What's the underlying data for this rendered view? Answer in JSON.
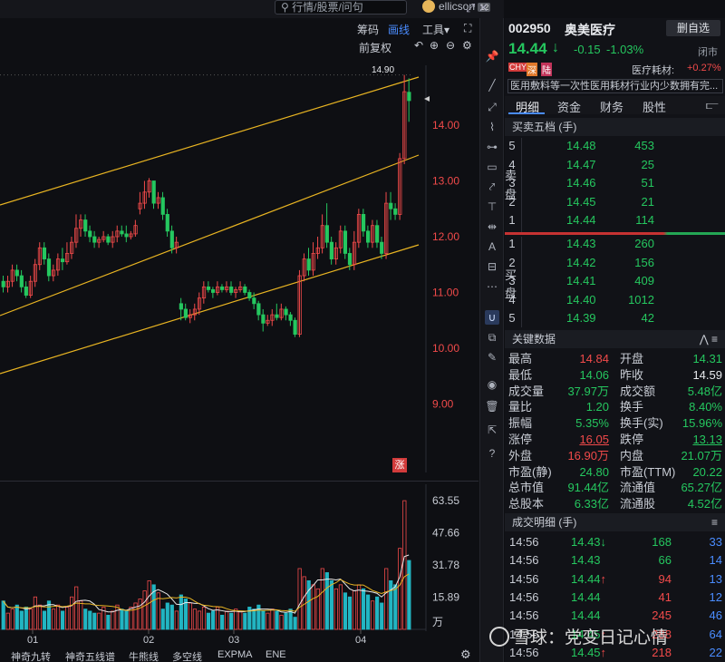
{
  "topbar": {
    "search_placeholder": "行情/股票/问句",
    "username": "ellicson",
    "user_badge": "12",
    "window_icons": [
      "expand-icon",
      "close-icon"
    ]
  },
  "chart_toolbar": {
    "row1": [
      "筹码",
      "画线",
      "工具▾"
    ],
    "active": "画线",
    "fq_label": "前复权",
    "icons": [
      "fullscreen-icon",
      "undo-icon",
      "zoom-in-icon",
      "zoom-out-icon",
      "settings-icon"
    ]
  },
  "main_chart": {
    "price_labels": [
      "14.00",
      "13.00",
      "12.00",
      "11.00",
      "10.00",
      "9.00"
    ],
    "high_marker": "14.90",
    "zhang_badge": "涨"
  },
  "vol_chart": {
    "labels": [
      "63.55",
      "47.66",
      "31.78",
      "15.89",
      "万"
    ],
    "months": [
      "01",
      "02",
      "03",
      "04"
    ]
  },
  "indicator_tabs": [
    "神奇九转",
    "神奇五线谱",
    "牛熊线",
    "多空线",
    "EXPMA",
    "ENE"
  ],
  "stock": {
    "code": "002950",
    "name": "奥美医疗",
    "watch_btn": "删自选",
    "price": "14.44",
    "arrow": "↓",
    "change": "-0.15",
    "pct": "-1.03%",
    "status": "闭市",
    "tags": [
      "CHY",
      "深",
      "陆"
    ],
    "industry": "医疗耗材:",
    "industry_pct": "+0.27%",
    "desc": "医用敷料等一次性医用耗材行业内少数拥有完..."
  },
  "tabs": [
    "明细",
    "资金",
    "财务",
    "股性"
  ],
  "orderbook": {
    "title": "买卖五档 (手)",
    "sell_label": [
      "卖",
      "盘"
    ],
    "buy_label": [
      "买",
      "盘"
    ],
    "sell": [
      {
        "lv": "5",
        "price": "14.48",
        "vol": "453"
      },
      {
        "lv": "4",
        "price": "14.47",
        "vol": "25"
      },
      {
        "lv": "3",
        "price": "14.46",
        "vol": "51"
      },
      {
        "lv": "2",
        "price": "14.45",
        "vol": "21"
      },
      {
        "lv": "1",
        "price": "14.44",
        "vol": "114"
      }
    ],
    "buy": [
      {
        "lv": "1",
        "price": "14.43",
        "vol": "260"
      },
      {
        "lv": "2",
        "price": "14.42",
        "vol": "156"
      },
      {
        "lv": "3",
        "price": "14.41",
        "vol": "409"
      },
      {
        "lv": "4",
        "price": "14.40",
        "vol": "1012"
      },
      {
        "lv": "5",
        "price": "14.39",
        "vol": "42"
      }
    ]
  },
  "key_data": {
    "title": "关键数据",
    "rows": [
      {
        "l1": "最高",
        "v1": "14.84",
        "c1": "red",
        "l2": "开盘",
        "v2": "14.31",
        "c2": "green"
      },
      {
        "l1": "最低",
        "v1": "14.06",
        "c1": "green",
        "l2": "昨收",
        "v2": "14.59",
        "c2": "white"
      },
      {
        "l1": "成交量",
        "v1": "37.97万",
        "c1": "green",
        "l2": "成交额",
        "v2": "5.48亿",
        "c2": "green"
      },
      {
        "l1": "量比",
        "v1": "1.20",
        "c1": "green",
        "l2": "换手",
        "v2": "8.40%",
        "c2": "green"
      },
      {
        "l1": "振幅",
        "v1": "5.35%",
        "c1": "green",
        "l2": "换手(实)",
        "v2": "15.96%",
        "c2": "green"
      },
      {
        "l1": "涨停",
        "v1": "16.05",
        "c1": "red-u",
        "l2": "跌停",
        "v2": "13.13",
        "c2": "green-u"
      },
      {
        "l1": "外盘",
        "v1": "16.90万",
        "c1": "red",
        "l2": "内盘",
        "v2": "21.07万",
        "c2": "green"
      },
      {
        "l1": "市盈(静)",
        "v1": "24.80",
        "c1": "green",
        "l2": "市盈(TTM)",
        "v2": "20.22",
        "c2": "green"
      },
      {
        "l1": "总市值",
        "v1": "91.44亿",
        "c1": "green",
        "l2": "流通值",
        "v2": "65.27亿",
        "c2": "green"
      },
      {
        "l1": "总股本",
        "v1": "6.33亿",
        "c1": "green",
        "l2": "流通股",
        "v2": "4.52亿",
        "c2": "green"
      }
    ]
  },
  "trades": {
    "title": "成交明细 (手)",
    "rows": [
      {
        "t": "14:56",
        "p": "14.43",
        "arrow": "↓",
        "ac": "green",
        "v": "168",
        "vc": "green",
        "n": "33"
      },
      {
        "t": "14:56",
        "p": "14.43",
        "arrow": "",
        "ac": "",
        "v": "66",
        "vc": "green",
        "n": "14"
      },
      {
        "t": "14:56",
        "p": "14.44",
        "arrow": "↑",
        "ac": "red",
        "v": "94",
        "vc": "red",
        "n": "13"
      },
      {
        "t": "14:56",
        "p": "14.44",
        "arrow": "",
        "ac": "",
        "v": "41",
        "vc": "red",
        "n": "12"
      },
      {
        "t": "14:56",
        "p": "14.44",
        "arrow": "",
        "ac": "",
        "v": "245",
        "vc": "red",
        "n": "46"
      },
      {
        "t": "14:56",
        "p": "14.45",
        "arrow": "↑",
        "ac": "red",
        "v": "288",
        "vc": "red",
        "n": "64"
      },
      {
        "t": "14:56",
        "p": "14.45",
        "arrow": "↑",
        "ac": "red",
        "v": "218",
        "vc": "red",
        "n": "22"
      }
    ]
  },
  "watermark": "雪球：党变日记心情",
  "colors": {
    "up": "#f14a4a",
    "down": "#25c75f",
    "accent": "#4a8cff",
    "channel": "#e8b422"
  }
}
